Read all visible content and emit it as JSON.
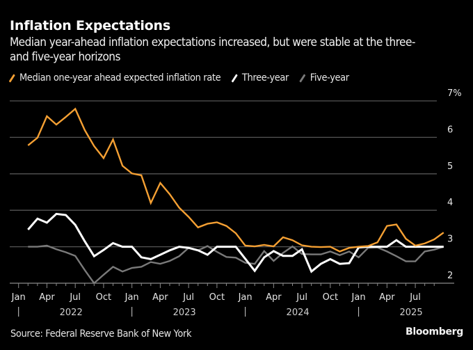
{
  "header": {
    "title": "Inflation Expectations",
    "subtitle": "Median year-ahead inflation expectations increased, but were stable at the three- and five-year horizons"
  },
  "legend": [
    {
      "label": "Median one-year ahead expected inflation rate",
      "color": "#f5a033"
    },
    {
      "label": "Three-year",
      "color": "#ffffff"
    },
    {
      "label": "Five-year",
      "color": "#7a7a7a"
    }
  ],
  "footer": {
    "source": "Source: Federal Reserve Bank of New York",
    "brand": "Bloomberg"
  },
  "colors": {
    "background": "#000000",
    "grid": "#555555",
    "axis": "#8a8a8a"
  },
  "chart_data": {
    "type": "line",
    "title": "Inflation Expectations",
    "subtitle": "Median year-ahead inflation expectations increased, but were stable at the three- and five-year horizons",
    "xlabel": "",
    "ylabel": "%",
    "ylim": [
      2,
      7
    ],
    "y_ticks": [
      "2",
      "3",
      "4",
      "5",
      "6",
      "7%"
    ],
    "y_tick_values": [
      2,
      3,
      4,
      5,
      6,
      7
    ],
    "y_axis_side": "right",
    "grid": true,
    "legend_position": "top-left",
    "x_start": "2022-01",
    "x_end": "2025-09",
    "x_tick_labels": [
      "Jan",
      "Apr",
      "Jul",
      "Oct",
      "Jan",
      "Apr",
      "Jul",
      "Oct",
      "Jan",
      "Apr",
      "Jul",
      "Oct",
      "Jan",
      "Apr",
      "Jul"
    ],
    "x_year_labels": [
      "2022",
      "2023",
      "2024",
      "2025"
    ],
    "x": [
      "2022-01",
      "2022-02",
      "2022-03",
      "2022-04",
      "2022-05",
      "2022-06",
      "2022-07",
      "2022-08",
      "2022-09",
      "2022-10",
      "2022-11",
      "2022-12",
      "2023-01",
      "2023-02",
      "2023-03",
      "2023-04",
      "2023-05",
      "2023-06",
      "2023-07",
      "2023-08",
      "2023-09",
      "2023-10",
      "2023-11",
      "2023-12",
      "2024-01",
      "2024-02",
      "2024-03",
      "2024-04",
      "2024-05",
      "2024-06",
      "2024-07",
      "2024-08",
      "2024-09",
      "2024-10",
      "2024-11",
      "2024-12",
      "2025-01",
      "2025-02",
      "2025-03",
      "2025-04",
      "2025-05",
      "2025-06",
      "2025-07",
      "2025-08",
      "2025-09"
    ],
    "series": [
      {
        "name": "Median one-year ahead expected inflation rate",
        "color": "#f5a033",
        "values": [
          5.78,
          5.99,
          6.58,
          6.35,
          6.56,
          6.78,
          6.2,
          5.76,
          5.43,
          5.94,
          5.22,
          5.01,
          4.96,
          4.2,
          4.75,
          4.44,
          4.07,
          3.82,
          3.53,
          3.63,
          3.67,
          3.57,
          3.37,
          3.03,
          3.01,
          3.05,
          3.01,
          3.26,
          3.18,
          3.04,
          3.0,
          2.99,
          3.0,
          2.87,
          2.97,
          3.0,
          3.02,
          3.12,
          3.57,
          3.61,
          3.22,
          3.03,
          3.09,
          3.2,
          3.39
        ]
      },
      {
        "name": "Three-year",
        "color": "#ffffff",
        "values": [
          3.47,
          3.77,
          3.66,
          3.9,
          3.87,
          3.6,
          3.15,
          2.74,
          2.91,
          3.1,
          3.0,
          3.0,
          2.71,
          2.66,
          2.78,
          2.9,
          3.0,
          2.97,
          2.9,
          2.78,
          3.0,
          3.0,
          3.0,
          2.67,
          2.34,
          2.71,
          2.88,
          2.75,
          2.75,
          2.93,
          2.32,
          2.53,
          2.66,
          2.53,
          2.55,
          2.98,
          3.0,
          3.0,
          3.0,
          3.18,
          3.0,
          3.0,
          3.0,
          3.0,
          3.0
        ]
      },
      {
        "name": "Five-year",
        "color": "#7a7a7a",
        "values": [
          3.0,
          3.0,
          3.03,
          2.93,
          2.85,
          2.75,
          2.36,
          2.0,
          2.23,
          2.45,
          2.32,
          2.42,
          2.45,
          2.58,
          2.53,
          2.61,
          2.74,
          2.97,
          2.9,
          3.02,
          2.86,
          2.72,
          2.7,
          2.56,
          2.53,
          2.88,
          2.61,
          2.83,
          3.01,
          2.8,
          2.79,
          2.79,
          2.87,
          2.77,
          2.87,
          2.71,
          2.97,
          2.98,
          2.87,
          2.74,
          2.6,
          2.6,
          2.87,
          2.92,
          3.0
        ]
      }
    ]
  }
}
